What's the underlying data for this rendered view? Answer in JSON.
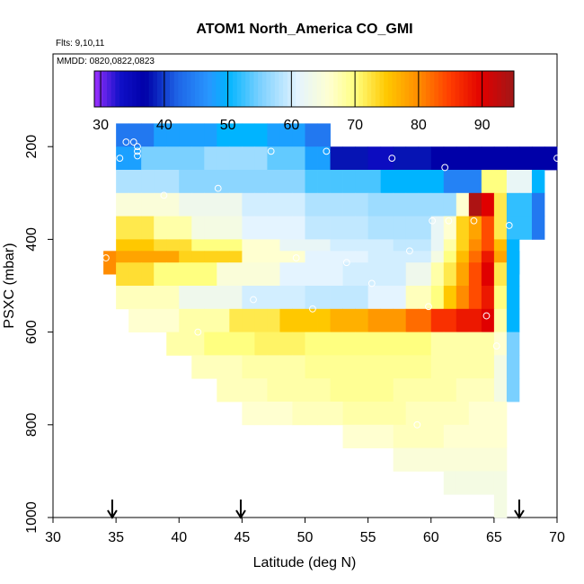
{
  "chart_data": {
    "type": "heatmap",
    "title": "ATOM1 North_America CO_GMI",
    "subtitle_flights": "Flts: 9,10,11",
    "subtitle_dates": "MMDD: 0820,0822,0823",
    "xlabel": "Latitude (deg N)",
    "ylabel": "PSXC (mbar)",
    "xlim": [
      30,
      70
    ],
    "ylim": [
      1000,
      0
    ],
    "x_ticks": [
      30,
      35,
      40,
      45,
      50,
      55,
      60,
      65,
      70
    ],
    "y_ticks": [
      200,
      400,
      600,
      800,
      1000
    ],
    "colorbar": {
      "range": [
        29,
        95
      ],
      "ticks": [
        30,
        40,
        50,
        60,
        70,
        80,
        90
      ],
      "stops": [
        {
          "v": 29,
          "c": "#9b30ff"
        },
        {
          "v": 33,
          "c": "#1010c8"
        },
        {
          "v": 37,
          "c": "#0000a8"
        },
        {
          "v": 42,
          "c": "#1e64e6"
        },
        {
          "v": 47,
          "c": "#2896ff"
        },
        {
          "v": 50,
          "c": "#00b4ff"
        },
        {
          "v": 55,
          "c": "#7ad0ff"
        },
        {
          "v": 61,
          "c": "#e4f4ff"
        },
        {
          "v": 66,
          "c": "#ffffd0"
        },
        {
          "v": 70,
          "c": "#ffff80"
        },
        {
          "v": 75,
          "c": "#ffc800"
        },
        {
          "v": 80,
          "c": "#ff8c00"
        },
        {
          "v": 85,
          "c": "#ff3c00"
        },
        {
          "v": 90,
          "c": "#e00000"
        },
        {
          "v": 95,
          "c": "#a01818"
        }
      ]
    },
    "cell_width_deg": 1,
    "cell_height_mbar": 50,
    "rows": [
      {
        "p": 175,
        "segments": [
          [
            35,
            38,
            44
          ],
          [
            38,
            43,
            48
          ],
          [
            43,
            47,
            50
          ],
          [
            47,
            50,
            48
          ],
          [
            50,
            52,
            44
          ]
        ]
      },
      {
        "p": 225,
        "segments": [
          [
            35,
            37,
            48
          ],
          [
            37,
            42,
            55
          ],
          [
            42,
            47,
            57
          ],
          [
            47,
            50,
            54
          ],
          [
            50,
            52,
            48
          ],
          [
            52,
            55,
            38
          ],
          [
            55,
            57,
            34
          ],
          [
            57,
            60,
            38
          ],
          [
            60,
            70,
            37
          ]
        ]
      },
      {
        "p": 275,
        "segments": [
          [
            35,
            40,
            58
          ],
          [
            40,
            45,
            56
          ],
          [
            45,
            50,
            56
          ],
          [
            50,
            56,
            53
          ],
          [
            56,
            61,
            50
          ],
          [
            61,
            64,
            45
          ],
          [
            64,
            66,
            70
          ],
          [
            66,
            68,
            62
          ],
          [
            68,
            69,
            50
          ]
        ]
      },
      {
        "p": 325,
        "segments": [
          [
            35,
            40,
            65
          ],
          [
            40,
            45,
            63
          ],
          [
            45,
            50,
            60
          ],
          [
            50,
            55,
            58
          ],
          [
            55,
            62,
            57
          ],
          [
            62,
            63,
            66
          ],
          [
            63,
            64,
            94
          ],
          [
            64,
            65,
            90
          ],
          [
            65,
            66,
            72
          ],
          [
            66,
            68,
            52
          ],
          [
            68,
            69,
            44
          ]
        ]
      },
      {
        "p": 375,
        "segments": [
          [
            35,
            38,
            72
          ],
          [
            38,
            41,
            68
          ],
          [
            41,
            45,
            64
          ],
          [
            45,
            50,
            61
          ],
          [
            50,
            55,
            59
          ],
          [
            55,
            60,
            58
          ],
          [
            60,
            61,
            62
          ],
          [
            61,
            62,
            66
          ],
          [
            62,
            63,
            74
          ],
          [
            63,
            64,
            78
          ],
          [
            64,
            65,
            84
          ],
          [
            65,
            66,
            72
          ],
          [
            66,
            68,
            52
          ],
          [
            68,
            69,
            44
          ]
        ]
      },
      {
        "p": 425,
        "segments": [
          [
            35,
            38,
            75
          ],
          [
            38,
            41,
            73
          ],
          [
            41,
            45,
            70
          ],
          [
            45,
            48,
            66
          ],
          [
            48,
            52,
            62
          ],
          [
            52,
            57,
            60
          ],
          [
            57,
            60,
            59
          ],
          [
            60,
            61,
            62
          ],
          [
            61,
            62,
            68
          ],
          [
            62,
            63,
            74
          ],
          [
            63,
            64,
            80
          ],
          [
            64,
            65,
            84
          ],
          [
            65,
            66,
            76
          ],
          [
            66,
            67,
            50
          ]
        ]
      },
      {
        "p": 450,
        "segments": [
          [
            34,
            35,
            80
          ],
          [
            35,
            40,
            78
          ],
          [
            40,
            45,
            74
          ],
          [
            45,
            50,
            66
          ],
          [
            50,
            55,
            61
          ],
          [
            55,
            60,
            60
          ],
          [
            60,
            61,
            64
          ],
          [
            61,
            62,
            70
          ],
          [
            62,
            63,
            76
          ],
          [
            63,
            64,
            82
          ],
          [
            64,
            65,
            88
          ],
          [
            65,
            66,
            78
          ],
          [
            66,
            67,
            50
          ]
        ]
      },
      {
        "p": 475,
        "segments": [
          [
            35,
            38,
            73
          ],
          [
            38,
            43,
            70
          ],
          [
            43,
            48,
            65
          ],
          [
            48,
            53,
            61
          ],
          [
            53,
            58,
            60
          ],
          [
            58,
            60,
            63
          ],
          [
            60,
            61,
            68
          ],
          [
            61,
            62,
            72
          ],
          [
            62,
            63,
            78
          ],
          [
            63,
            64,
            84
          ],
          [
            64,
            65,
            90
          ],
          [
            65,
            66,
            72
          ],
          [
            66,
            67,
            50
          ]
        ]
      },
      {
        "p": 525,
        "segments": [
          [
            35,
            40,
            67
          ],
          [
            40,
            45,
            63
          ],
          [
            45,
            50,
            60
          ],
          [
            50,
            55,
            59
          ],
          [
            55,
            58,
            61
          ],
          [
            58,
            60,
            67
          ],
          [
            60,
            61,
            70
          ],
          [
            61,
            62,
            75
          ],
          [
            62,
            63,
            80
          ],
          [
            63,
            64,
            84
          ],
          [
            64,
            65,
            88
          ],
          [
            65,
            66,
            70
          ],
          [
            66,
            67,
            50
          ]
        ]
      },
      {
        "p": 575,
        "segments": [
          [
            36,
            40,
            66
          ],
          [
            40,
            44,
            68
          ],
          [
            44,
            48,
            72
          ],
          [
            48,
            52,
            75
          ],
          [
            52,
            55,
            77
          ],
          [
            55,
            58,
            79
          ],
          [
            58,
            60,
            82
          ],
          [
            60,
            62,
            86
          ],
          [
            62,
            64,
            88
          ],
          [
            64,
            65,
            90
          ],
          [
            65,
            66,
            68
          ],
          [
            66,
            67,
            50
          ]
        ]
      },
      {
        "p": 625,
        "segments": [
          [
            39,
            42,
            68
          ],
          [
            42,
            46,
            70
          ],
          [
            46,
            50,
            71
          ],
          [
            50,
            55,
            70
          ],
          [
            55,
            60,
            70
          ],
          [
            60,
            65,
            68
          ],
          [
            65,
            66,
            66
          ],
          [
            66,
            67,
            55
          ]
        ]
      },
      {
        "p": 675,
        "segments": [
          [
            41,
            45,
            67
          ],
          [
            45,
            50,
            68
          ],
          [
            50,
            55,
            69
          ],
          [
            55,
            60,
            69
          ],
          [
            60,
            65,
            68
          ],
          [
            65,
            66,
            64
          ],
          [
            66,
            67,
            55
          ]
        ]
      },
      {
        "p": 725,
        "segments": [
          [
            43,
            47,
            67
          ],
          [
            47,
            52,
            68
          ],
          [
            52,
            57,
            69
          ],
          [
            57,
            62,
            68
          ],
          [
            62,
            65,
            67
          ],
          [
            65,
            66,
            64
          ],
          [
            66,
            67,
            55
          ]
        ]
      },
      {
        "p": 775,
        "segments": [
          [
            45,
            49,
            66
          ],
          [
            49,
            53,
            67
          ],
          [
            53,
            58,
            68
          ],
          [
            58,
            63,
            67
          ],
          [
            63,
            66,
            66
          ]
        ]
      },
      {
        "p": 825,
        "segments": [
          [
            53,
            57,
            66
          ],
          [
            57,
            61,
            67
          ],
          [
            61,
            66,
            66
          ]
        ]
      },
      {
        "p": 875,
        "segments": [
          [
            57,
            61,
            65
          ],
          [
            61,
            66,
            65
          ]
        ]
      },
      {
        "p": 925,
        "segments": [
          [
            61,
            64,
            64
          ],
          [
            64,
            66,
            64
          ]
        ]
      },
      {
        "p": 975,
        "segments": [
          [
            65,
            66,
            64
          ]
        ]
      }
    ],
    "observations": [
      {
        "lat": 35.3,
        "p": 225
      },
      {
        "lat": 35.8,
        "p": 190
      },
      {
        "lat": 36.4,
        "p": 190
      },
      {
        "lat": 36.7,
        "p": 200
      },
      {
        "lat": 36.7,
        "p": 210
      },
      {
        "lat": 36.7,
        "p": 220
      },
      {
        "lat": 38.8,
        "p": 305
      },
      {
        "lat": 43.1,
        "p": 290
      },
      {
        "lat": 47.3,
        "p": 210
      },
      {
        "lat": 51.7,
        "p": 210
      },
      {
        "lat": 56.9,
        "p": 225
      },
      {
        "lat": 61.1,
        "p": 245
      },
      {
        "lat": 70.0,
        "p": 225
      },
      {
        "lat": 60.1,
        "p": 360
      },
      {
        "lat": 61.4,
        "p": 360
      },
      {
        "lat": 63.4,
        "p": 360
      },
      {
        "lat": 66.2,
        "p": 370
      },
      {
        "lat": 34.2,
        "p": 440
      },
      {
        "lat": 49.3,
        "p": 440
      },
      {
        "lat": 53.3,
        "p": 450
      },
      {
        "lat": 55.3,
        "p": 495
      },
      {
        "lat": 58.3,
        "p": 425
      },
      {
        "lat": 45.9,
        "p": 530
      },
      {
        "lat": 50.6,
        "p": 550
      },
      {
        "lat": 59.8,
        "p": 545
      },
      {
        "lat": 64.4,
        "p": 565
      },
      {
        "lat": 41.5,
        "p": 600
      },
      {
        "lat": 65.2,
        "p": 630
      },
      {
        "lat": 58.9,
        "p": 800
      }
    ],
    "flight_markers_lat": [
      34.7,
      44.9,
      67.0
    ]
  }
}
